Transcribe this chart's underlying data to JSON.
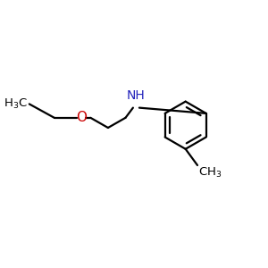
{
  "background_color": "#ffffff",
  "figsize": [
    3.0,
    3.0
  ],
  "dpi": 100,
  "bond_lw": 1.6,
  "ring_color": "#000000",
  "chain_color": "#000000",
  "O_color": "#cc0000",
  "NH_color": "#2222bb",
  "label_color": "#000000",
  "label_fs": 9.5,
  "O_fs": 11,
  "NH_fs": 10,
  "CH3_fs": 9.5
}
